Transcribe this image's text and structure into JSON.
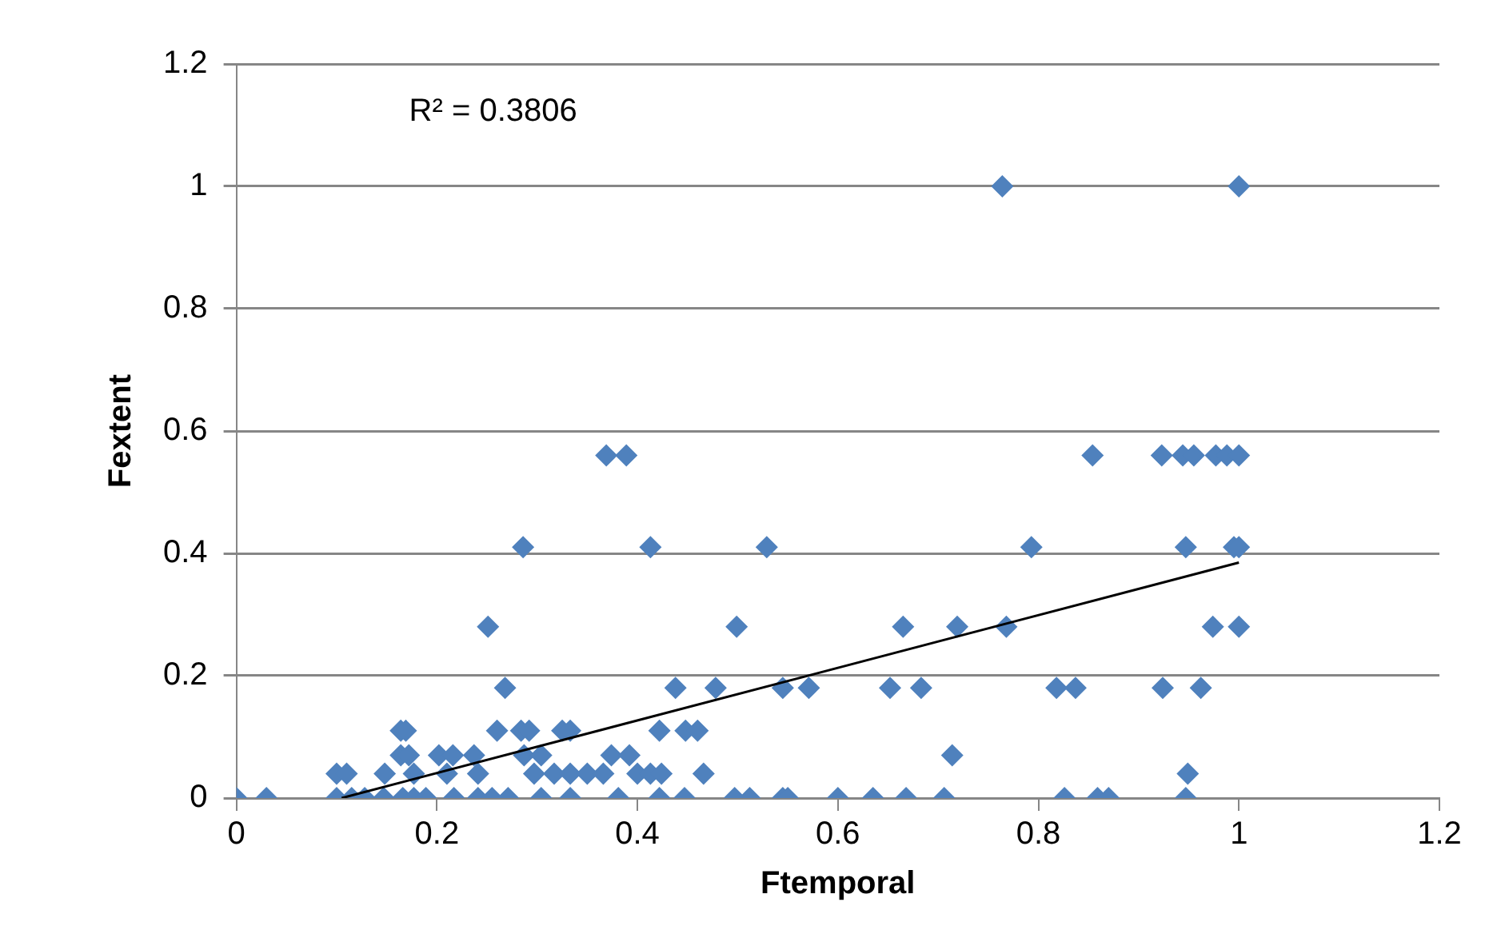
{
  "chart_data": {
    "type": "scatter",
    "xlabel": "Ftemporal",
    "ylabel": "Fextent",
    "xlim": [
      0,
      1.2
    ],
    "xticks": [
      0,
      0.2,
      0.4,
      0.6,
      0.8,
      1,
      1.2
    ],
    "ylim": [
      0,
      1.2
    ],
    "yticks": [
      0,
      0.2,
      0.4,
      0.6,
      0.8,
      1,
      1.2
    ],
    "grid": "y",
    "legend": false,
    "marker": "diamond",
    "annotations": [
      "R² = 0.3806"
    ],
    "series": [
      {
        "color": "#4f81bd",
        "x": [
          0,
          0.03,
          0.1,
          0.115,
          0.128,
          0.147,
          0.166,
          0.177,
          0.189,
          0.217,
          0.241,
          0.255,
          0.271,
          0.304,
          0.333,
          0.381,
          0.422,
          0.447,
          0.497,
          0.512,
          0.545,
          0.55,
          0.6,
          0.635,
          0.668,
          0.706,
          0.826,
          0.859,
          0.87,
          0.947,
          0.1,
          0.11,
          0.148,
          0.177,
          0.21,
          0.241,
          0.297,
          0.317,
          0.333,
          0.35,
          0.366,
          0.4,
          0.413,
          0.424,
          0.466,
          0.949,
          0.164,
          0.172,
          0.202,
          0.216,
          0.237,
          0.287,
          0.304,
          0.374,
          0.392,
          0.714,
          0.164,
          0.169,
          0.26,
          0.284,
          0.292,
          0.325,
          0.333,
          0.422,
          0.448,
          0.46,
          0.268,
          0.438,
          0.478,
          0.545,
          0.571,
          0.652,
          0.683,
          0.818,
          0.837,
          0.924,
          0.962,
          0.251,
          0.499,
          0.665,
          0.719,
          0.768,
          0.974,
          1,
          0.286,
          0.413,
          0.529,
          0.793,
          0.947,
          0.995,
          1,
          0.369,
          0.389,
          0.854,
          0.923,
          0.944,
          0.955,
          0.977,
          0.988,
          1,
          0.764,
          1
        ],
        "values": [
          0,
          0,
          0,
          0,
          0,
          0,
          0,
          0,
          0,
          0,
          0,
          0,
          0,
          0,
          0,
          0,
          0,
          0,
          0,
          0,
          0,
          0,
          0,
          0,
          0,
          0,
          0,
          0,
          0,
          0,
          0.04,
          0.04,
          0.04,
          0.04,
          0.04,
          0.04,
          0.04,
          0.04,
          0.04,
          0.04,
          0.04,
          0.04,
          0.04,
          0.04,
          0.04,
          0.04,
          0.07,
          0.07,
          0.07,
          0.07,
          0.07,
          0.07,
          0.07,
          0.07,
          0.07,
          0.07,
          0.11,
          0.11,
          0.11,
          0.11,
          0.11,
          0.11,
          0.11,
          0.11,
          0.11,
          0.11,
          0.18,
          0.18,
          0.18,
          0.18,
          0.18,
          0.18,
          0.18,
          0.18,
          0.18,
          0.18,
          0.18,
          0.28,
          0.28,
          0.28,
          0.28,
          0.28,
          0.28,
          0.28,
          0.41,
          0.41,
          0.41,
          0.41,
          0.41,
          0.41,
          0.41,
          0.56,
          0.56,
          0.56,
          0.56,
          0.56,
          0.56,
          0.56,
          0.56,
          0.56,
          1,
          1
        ]
      },
      {
        "type": "line",
        "color": "#000000",
        "x": [
          0.105,
          1
        ],
        "values": [
          0,
          0.385
        ],
        "marker": "none"
      }
    ]
  }
}
